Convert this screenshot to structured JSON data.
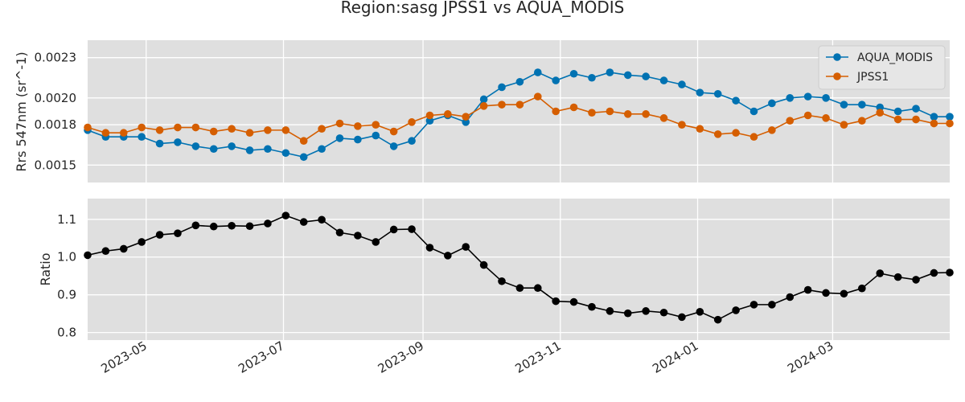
{
  "chart_data": {
    "title": "Region:sasg JPSS1 vs AQUA_MODIS",
    "x_dates": [
      "2023-04-05",
      "2023-04-13",
      "2023-04-21",
      "2023-04-29",
      "2023-05-07",
      "2023-05-15",
      "2023-05-23",
      "2023-05-31",
      "2023-06-08",
      "2023-06-16",
      "2023-06-24",
      "2023-07-02",
      "2023-07-10",
      "2023-07-18",
      "2023-07-26",
      "2023-08-03",
      "2023-08-11",
      "2023-08-19",
      "2023-08-27",
      "2023-09-04",
      "2023-09-12",
      "2023-09-20",
      "2023-09-28",
      "2023-10-06",
      "2023-10-14",
      "2023-10-22",
      "2023-10-30",
      "2023-11-07",
      "2023-11-15",
      "2023-11-23",
      "2023-12-01",
      "2023-12-09",
      "2023-12-17",
      "2023-12-25",
      "2024-01-02",
      "2024-01-10",
      "2024-01-18",
      "2024-01-26",
      "2024-02-03",
      "2024-02-11",
      "2024-02-19",
      "2024-02-27",
      "2024-03-06",
      "2024-03-14",
      "2024-03-22",
      "2024-03-30",
      "2024-04-07",
      "2024-04-15",
      "2024-04-22"
    ],
    "xlim": [
      "2023-04-05",
      "2024-04-22"
    ],
    "x_ticks": [
      "2023-05-01",
      "2023-07-01",
      "2023-09-01",
      "2023-11-01",
      "2024-01-01",
      "2024-03-01"
    ],
    "x_tick_labels": [
      "2023-05",
      "2023-07",
      "2023-09",
      "2023-11",
      "2024-01",
      "2024-03"
    ],
    "panels": [
      {
        "type": "line",
        "ylabel": "Rrs 547nm (sr^-1)",
        "ylim": [
          0.00137,
          0.00243
        ],
        "y_ticks": [
          0.0015,
          0.0018,
          0.002,
          0.0023
        ],
        "y_tick_labels": [
          "0.0015",
          "0.0018",
          "0.0020",
          "0.0023"
        ],
        "grid": true,
        "legend": "top-right",
        "series": [
          {
            "name": "AQUA_MODIS",
            "color": "#0072b2",
            "values": [
              0.00176,
              0.00171,
              0.00171,
              0.00171,
              0.00166,
              0.00167,
              0.00164,
              0.00162,
              0.00164,
              0.00161,
              0.00162,
              0.00159,
              0.00156,
              0.00162,
              0.0017,
              0.00169,
              0.00172,
              0.00164,
              0.00168,
              0.00183,
              0.00187,
              0.00182,
              0.00199,
              0.00208,
              0.00212,
              0.00219,
              0.00213,
              0.00218,
              0.00215,
              0.00219,
              0.00217,
              0.00216,
              0.00213,
              0.0021,
              0.00204,
              0.00203,
              0.00198,
              0.0019,
              0.00196,
              0.002,
              0.00201,
              0.002,
              0.00195,
              0.00195,
              0.00193,
              0.0019,
              0.00192,
              0.00186,
              0.00186
            ]
          },
          {
            "name": "JPSS1",
            "color": "#d55e00",
            "values": [
              0.00178,
              0.00174,
              0.00174,
              0.00178,
              0.00176,
              0.00178,
              0.00178,
              0.00175,
              0.00177,
              0.00174,
              0.00176,
              0.00176,
              0.00168,
              0.00177,
              0.00181,
              0.00179,
              0.0018,
              0.00175,
              0.00182,
              0.00187,
              0.00188,
              0.00186,
              0.00194,
              0.00195,
              0.00195,
              0.00201,
              0.0019,
              0.00193,
              0.00189,
              0.0019,
              0.00188,
              0.00188,
              0.00185,
              0.0018,
              0.00177,
              0.00173,
              0.00174,
              0.00171,
              0.00176,
              0.00183,
              0.00187,
              0.00185,
              0.0018,
              0.00183,
              0.00189,
              0.00184,
              0.00184,
              0.00181,
              0.00181
            ]
          }
        ]
      },
      {
        "type": "line",
        "ylabel": "Ratio",
        "ylim": [
          0.78,
          1.155
        ],
        "y_ticks": [
          0.8,
          0.9,
          1.0,
          1.1
        ],
        "y_tick_labels": [
          "0.8",
          "0.9",
          "1.0",
          "1.1"
        ],
        "grid": true,
        "series": [
          {
            "name": "",
            "color": "#000000",
            "values": [
              1.005,
              1.016,
              1.022,
              1.04,
              1.059,
              1.063,
              1.084,
              1.081,
              1.083,
              1.082,
              1.089,
              1.11,
              1.093,
              1.099,
              1.065,
              1.057,
              1.04,
              1.073,
              1.074,
              1.025,
              1.004,
              1.027,
              0.979,
              0.936,
              0.918,
              0.918,
              0.883,
              0.881,
              0.868,
              0.857,
              0.851,
              0.857,
              0.853,
              0.841,
              0.855,
              0.834,
              0.859,
              0.874,
              0.874,
              0.894,
              0.913,
              0.905,
              0.903,
              0.917,
              0.957,
              0.947,
              0.94,
              0.958,
              0.959
            ]
          }
        ]
      }
    ]
  }
}
